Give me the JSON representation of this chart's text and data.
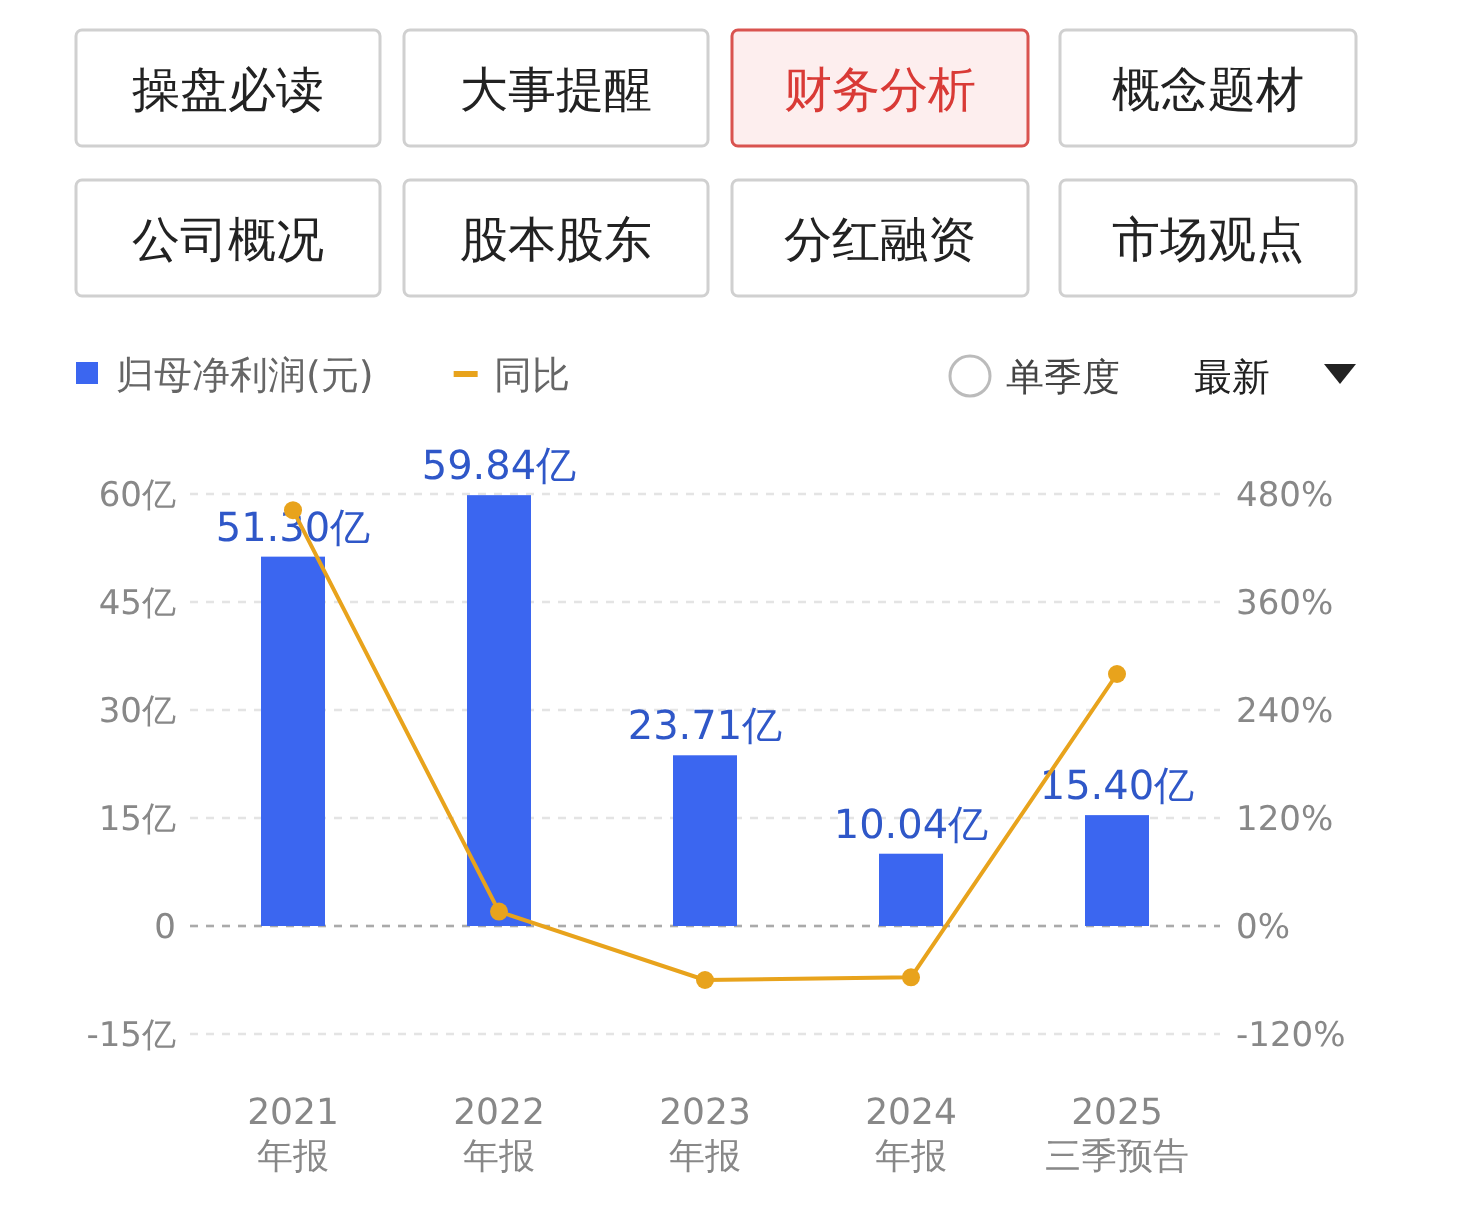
{
  "chart_data": {
    "type": "bar",
    "categories": [
      "2021\n年报",
      "2022\n年报",
      "2023\n年报",
      "2024\n年报",
      "2025\n三季预告"
    ],
    "series": [
      {
        "name": "归母净利润(元)",
        "color": "#3b66f0",
        "values": [
          51.3,
          59.84,
          23.71,
          10.04,
          15.4
        ],
        "value_labels": [
          "51.30亿",
          "59.84亿",
          "23.71亿",
          "10.04亿",
          "15.40亿"
        ]
      },
      {
        "name": "同比",
        "type": "line",
        "axis": "y2",
        "color": "#e8a31c",
        "values": [
          462,
          16,
          -60,
          -57,
          280
        ]
      }
    ],
    "ylim": [
      -15,
      60
    ],
    "yticks": [
      {
        "value": -15,
        "label": "-15亿"
      },
      {
        "value": 0,
        "label": "0"
      },
      {
        "value": 15,
        "label": "15亿"
      },
      {
        "value": 30,
        "label": "30亿"
      },
      {
        "value": 45,
        "label": "45亿"
      },
      {
        "value": 60,
        "label": "60亿"
      }
    ],
    "y2lim": [
      -120,
      480
    ],
    "y2ticks": [
      {
        "value": -120,
        "label": "-120%"
      },
      {
        "value": 0,
        "label": "0%"
      },
      {
        "value": 120,
        "label": "120%"
      },
      {
        "value": 240,
        "label": "240%"
      },
      {
        "value": 360,
        "label": "360%"
      },
      {
        "value": 480,
        "label": "480%"
      }
    ],
    "ref_lines": [
      {
        "axis": "y",
        "value": 0,
        "color": "#aaaaaa",
        "line_style": "dashed"
      }
    ],
    "grid": "y",
    "legend": "top left",
    "marker": "circle",
    "line_style": "solid",
    "annotations": [
      "操盘必读",
      "大事提醒",
      "财务分析",
      "概念题材",
      "公司概况",
      "股本股东",
      "分红融资",
      "市场观点",
      "单季度",
      "最新"
    ]
  }
}
